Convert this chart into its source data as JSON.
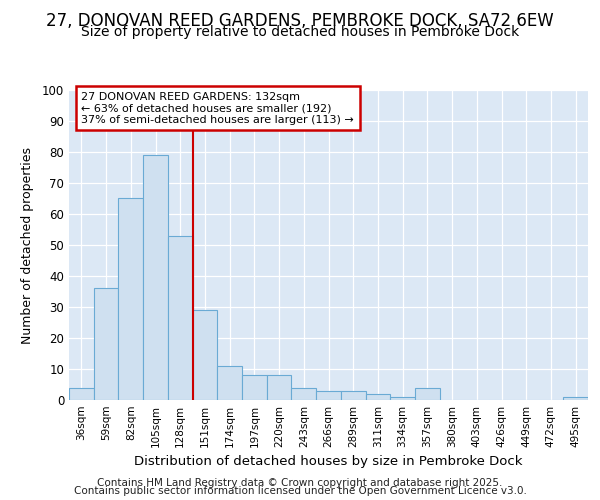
{
  "title_line1": "27, DONOVAN REED GARDENS, PEMBROKE DOCK, SA72 6EW",
  "title_line2": "Size of property relative to detached houses in Pembroke Dock",
  "xlabel": "Distribution of detached houses by size in Pembroke Dock",
  "ylabel": "Number of detached properties",
  "categories": [
    "36sqm",
    "59sqm",
    "82sqm",
    "105sqm",
    "128sqm",
    "151sqm",
    "174sqm",
    "197sqm",
    "220sqm",
    "243sqm",
    "266sqm",
    "289sqm",
    "311sqm",
    "334sqm",
    "357sqm",
    "380sqm",
    "403sqm",
    "426sqm",
    "449sqm",
    "472sqm",
    "495sqm"
  ],
  "values": [
    4,
    36,
    65,
    79,
    53,
    29,
    11,
    8,
    8,
    4,
    3,
    3,
    2,
    1,
    4,
    0,
    0,
    0,
    0,
    0,
    1
  ],
  "bar_color": "#cfe0f0",
  "bar_edge_color": "#6aaad4",
  "red_line_index": 4,
  "red_line_color": "#cc0000",
  "annotation_line1": "27 DONOVAN REED GARDENS: 132sqm",
  "annotation_line2": "← 63% of detached houses are smaller (192)",
  "annotation_line3": "37% of semi-detached houses are larger (113) →",
  "annotation_box_color": "#ffffff",
  "annotation_box_edge": "#cc0000",
  "ylim": [
    0,
    100
  ],
  "yticks": [
    0,
    10,
    20,
    30,
    40,
    50,
    60,
    70,
    80,
    90,
    100
  ],
  "footer_line1": "Contains HM Land Registry data © Crown copyright and database right 2025.",
  "footer_line2": "Contains public sector information licensed under the Open Government Licence v3.0.",
  "fig_bg_color": "#ffffff",
  "plot_bg_color": "#dce8f5",
  "grid_color": "#ffffff",
  "title_fontsize": 12,
  "subtitle_fontsize": 10,
  "footer_fontsize": 7.5
}
